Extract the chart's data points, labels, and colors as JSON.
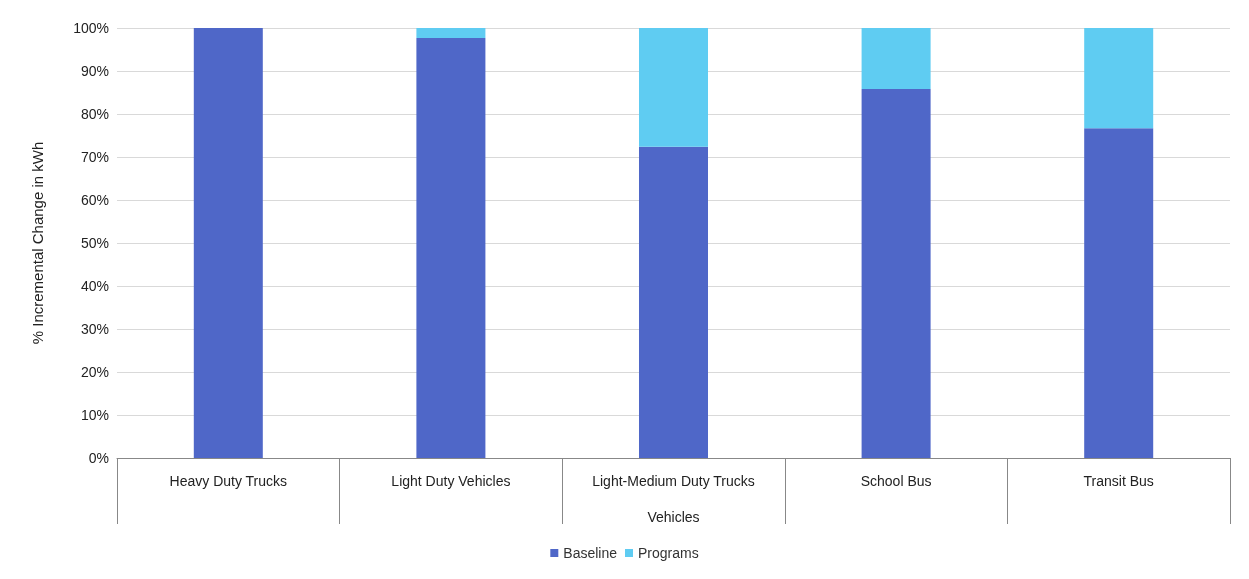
{
  "chart_data": {
    "type": "bar",
    "stacked": true,
    "xlabel": "Vehicles",
    "ylabel": "% Incremental Change in kWh",
    "categories": [
      "Heavy Duty Trucks",
      "Light Duty Vehicles",
      "Light-Medium Duty Trucks",
      "School Bus",
      "Transit Bus"
    ],
    "series": [
      {
        "name": "Baseline",
        "color": "#4f67c8",
        "values": [
          100,
          97.7,
          72.4,
          85.8,
          76.7
        ]
      },
      {
        "name": "Programs",
        "color": "#5fccf2",
        "values": [
          0,
          2.3,
          27.6,
          14.2,
          23.3
        ]
      }
    ],
    "ylim": [
      0,
      100
    ],
    "yticks": [
      {
        "value": 0,
        "label": "0%"
      },
      {
        "value": 10,
        "label": "10%"
      },
      {
        "value": 20,
        "label": "20%"
      },
      {
        "value": 30,
        "label": "30%"
      },
      {
        "value": 40,
        "label": "40%"
      },
      {
        "value": 50,
        "label": "50%"
      },
      {
        "value": 60,
        "label": "60%"
      },
      {
        "value": 70,
        "label": "70%"
      },
      {
        "value": 80,
        "label": "80%"
      },
      {
        "value": 90,
        "label": "90%"
      },
      {
        "value": 100,
        "label": "100%"
      }
    ],
    "grid": "y",
    "legend": "bottom"
  }
}
